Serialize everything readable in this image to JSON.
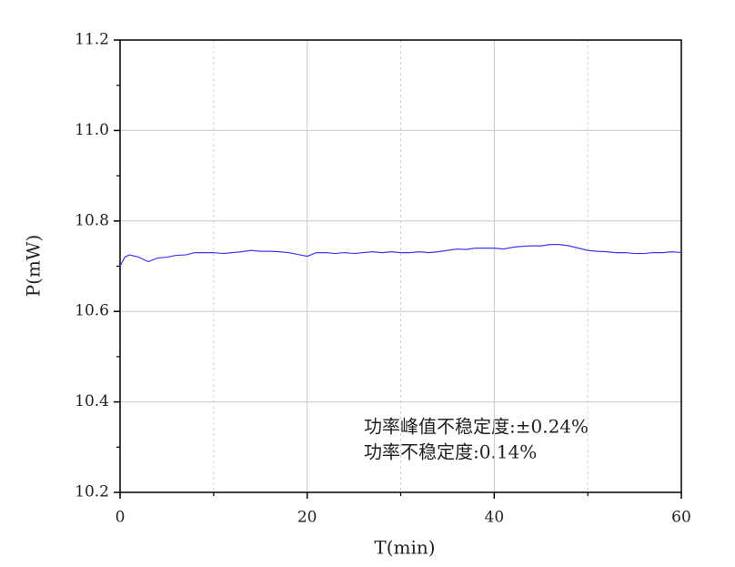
{
  "chart_data": {
    "type": "line",
    "xlabel": "T(min)",
    "ylabel": "P(mW)",
    "x": [
      0,
      0.5,
      1,
      2,
      3,
      4,
      5,
      6,
      7,
      8,
      9,
      10,
      11,
      12,
      13,
      14,
      15,
      16,
      17,
      18,
      19,
      20,
      21,
      22,
      23,
      24,
      25,
      26,
      27,
      28,
      29,
      30,
      31,
      32,
      33,
      34,
      35,
      36,
      37,
      38,
      39,
      40,
      41,
      42,
      43,
      44,
      45,
      46,
      47,
      48,
      49,
      50,
      51,
      52,
      53,
      54,
      55,
      56,
      57,
      58,
      59,
      60
    ],
    "series": [
      {
        "color": "#3b3bf5",
        "values": [
          10.7,
          10.72,
          10.725,
          10.72,
          10.71,
          10.718,
          10.72,
          10.724,
          10.725,
          10.73,
          10.73,
          10.73,
          10.728,
          10.73,
          10.732,
          10.735,
          10.733,
          10.733,
          10.732,
          10.73,
          10.726,
          10.722,
          10.73,
          10.73,
          10.728,
          10.73,
          10.728,
          10.73,
          10.732,
          10.73,
          10.732,
          10.73,
          10.73,
          10.732,
          10.73,
          10.732,
          10.735,
          10.738,
          10.737,
          10.74,
          10.74,
          10.74,
          10.738,
          10.742,
          10.744,
          10.745,
          10.745,
          10.748,
          10.748,
          10.745,
          10.74,
          10.735,
          10.733,
          10.732,
          10.73,
          10.73,
          10.728,
          10.728,
          10.73,
          10.73,
          10.732,
          10.73
        ]
      }
    ],
    "xlim": [
      0,
      60
    ],
    "xticks": [
      0,
      20,
      40,
      60
    ],
    "xminor": [
      10,
      30,
      50
    ],
    "ylim": [
      10.2,
      11.2
    ],
    "yticks": [
      10.2,
      10.4,
      10.6,
      10.8,
      {
        "value": 11,
        "label": "11.0"
      },
      11.2
    ],
    "yminor": [
      10.3,
      10.5,
      10.7,
      10.9,
      11.1
    ],
    "grid": true,
    "annotations": [
      "功率峰值不稳定度:±0.24%",
      "功率不稳定度:0.14%"
    ]
  }
}
